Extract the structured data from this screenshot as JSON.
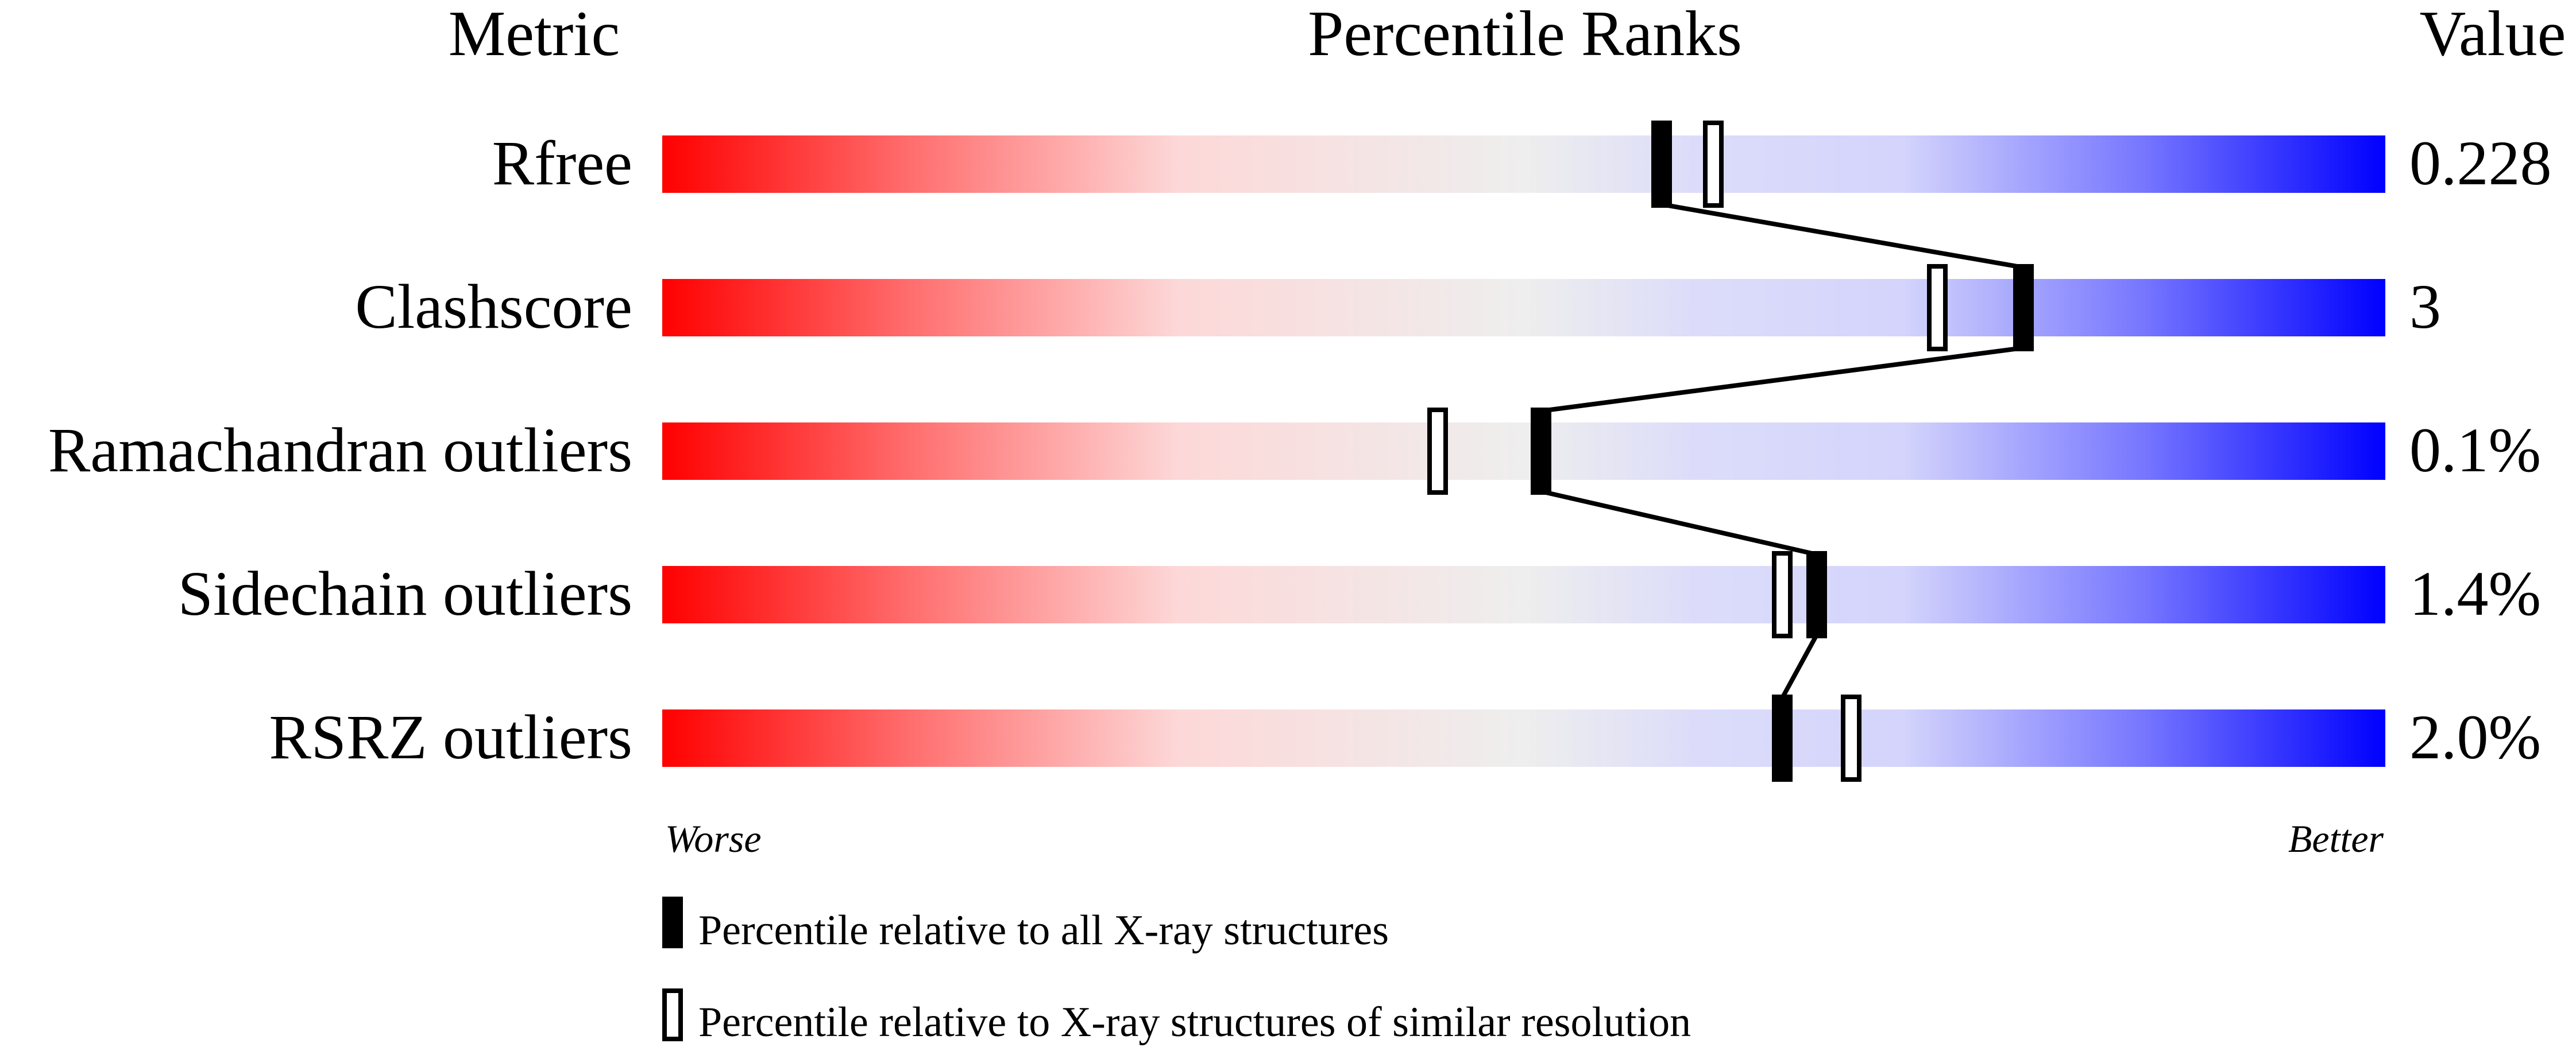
{
  "chart_data": {
    "type": "percentile-slider",
    "headers": {
      "metric": "Metric",
      "ranks": "Percentile Ranks",
      "value": "Value"
    },
    "axis": {
      "min_label": "Worse",
      "max_label": "Better",
      "range": [
        0,
        100
      ]
    },
    "metrics": [
      {
        "name": "Rfree",
        "value": "0.228",
        "percentile_all": 58,
        "percentile_similar": 61
      },
      {
        "name": "Clashscore",
        "value": "3",
        "percentile_all": 79,
        "percentile_similar": 74
      },
      {
        "name": "Ramachandran outliers",
        "value": "0.1%",
        "percentile_all": 51,
        "percentile_similar": 45
      },
      {
        "name": "Sidechain outliers",
        "value": "1.4%",
        "percentile_all": 67,
        "percentile_similar": 65
      },
      {
        "name": "RSRZ outliers",
        "value": "2.0%",
        "percentile_all": 65,
        "percentile_similar": 69
      }
    ],
    "legend": {
      "filled": "Percentile relative to all X-ray structures",
      "open": "Percentile relative to X-ray structures of similar resolution"
    },
    "colors": {
      "worse": "#ff0000",
      "middle": "#eeeeee",
      "better": "#0000ff"
    }
  }
}
